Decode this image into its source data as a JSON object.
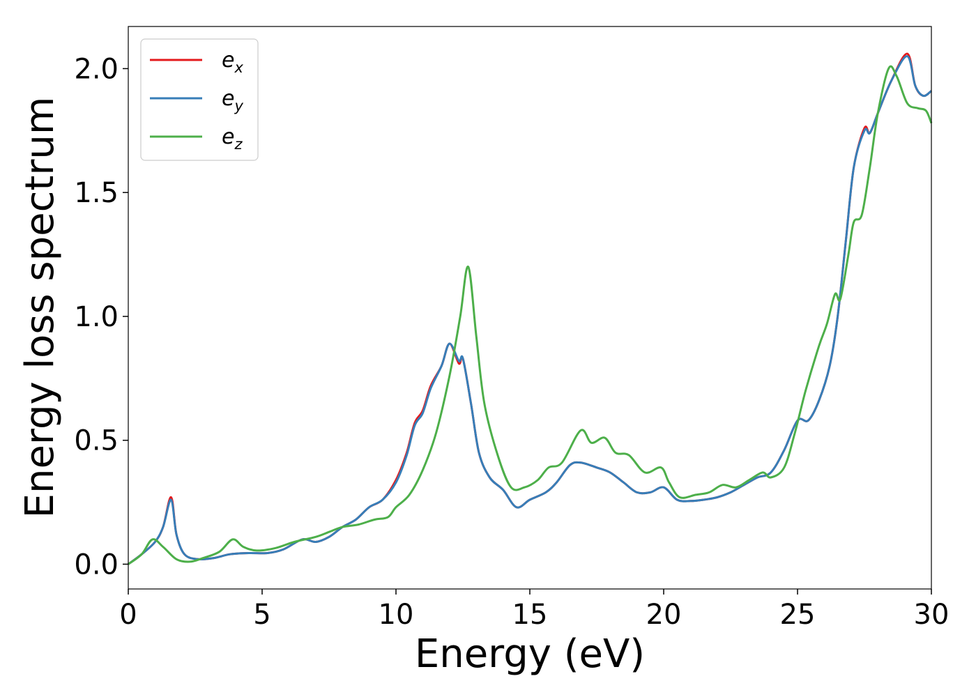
{
  "chart_data": {
    "type": "line",
    "title": "",
    "xlabel": "Energy (eV)",
    "ylabel": "Energy loss spectrum",
    "xlim": [
      0,
      30
    ],
    "ylim": [
      -0.1,
      2.17
    ],
    "x_ticks": [
      "0",
      "5",
      "10",
      "15",
      "20",
      "25",
      "30"
    ],
    "y_ticks": [
      "0.0",
      "0.5",
      "1.0",
      "1.5",
      "2.0"
    ],
    "x_tick_values": [
      0,
      5,
      10,
      15,
      20,
      25,
      30
    ],
    "y_tick_values": [
      0.0,
      0.5,
      1.0,
      1.5,
      2.0
    ],
    "grid": false,
    "legend_position": "top-left",
    "series": [
      {
        "name": "e",
        "subscript": "x",
        "color": "#e41a1c",
        "points": [
          [
            0,
            0
          ],
          [
            0.5,
            0.04
          ],
          [
            1.0,
            0.09
          ],
          [
            1.3,
            0.15
          ],
          [
            1.6,
            0.27
          ],
          [
            1.8,
            0.12
          ],
          [
            2.1,
            0.04
          ],
          [
            2.6,
            0.02
          ],
          [
            3.2,
            0.025
          ],
          [
            3.8,
            0.04
          ],
          [
            4.5,
            0.045
          ],
          [
            5.2,
            0.045
          ],
          [
            5.8,
            0.06
          ],
          [
            6.5,
            0.1
          ],
          [
            7.0,
            0.09
          ],
          [
            7.5,
            0.11
          ],
          [
            8.0,
            0.15
          ],
          [
            8.5,
            0.18
          ],
          [
            9.0,
            0.23
          ],
          [
            9.5,
            0.26
          ],
          [
            10.0,
            0.34
          ],
          [
            10.4,
            0.45
          ],
          [
            10.7,
            0.57
          ],
          [
            11.0,
            0.62
          ],
          [
            11.3,
            0.72
          ],
          [
            11.7,
            0.8
          ],
          [
            12.0,
            0.89
          ],
          [
            12.35,
            0.81
          ],
          [
            12.5,
            0.83
          ],
          [
            12.8,
            0.65
          ],
          [
            13.1,
            0.45
          ],
          [
            13.5,
            0.35
          ],
          [
            14.0,
            0.3
          ],
          [
            14.5,
            0.23
          ],
          [
            15.0,
            0.26
          ],
          [
            15.6,
            0.29
          ],
          [
            16.0,
            0.33
          ],
          [
            16.5,
            0.4
          ],
          [
            16.9,
            0.41
          ],
          [
            17.5,
            0.39
          ],
          [
            18.0,
            0.37
          ],
          [
            18.5,
            0.33
          ],
          [
            19.0,
            0.29
          ],
          [
            19.5,
            0.29
          ],
          [
            20.0,
            0.31
          ],
          [
            20.5,
            0.26
          ],
          [
            21.0,
            0.255
          ],
          [
            21.5,
            0.26
          ],
          [
            22.0,
            0.27
          ],
          [
            22.5,
            0.29
          ],
          [
            23.0,
            0.32
          ],
          [
            23.5,
            0.35
          ],
          [
            24.0,
            0.37
          ],
          [
            24.5,
            0.46
          ],
          [
            25.0,
            0.58
          ],
          [
            25.4,
            0.58
          ],
          [
            25.8,
            0.66
          ],
          [
            26.2,
            0.8
          ],
          [
            26.5,
            1.0
          ],
          [
            26.8,
            1.3
          ],
          [
            27.1,
            1.6
          ],
          [
            27.5,
            1.76
          ],
          [
            27.7,
            1.74
          ],
          [
            28.0,
            1.82
          ],
          [
            28.5,
            1.95
          ],
          [
            29.1,
            2.06
          ],
          [
            29.4,
            1.93
          ],
          [
            29.7,
            1.89
          ],
          [
            30.0,
            1.91
          ]
        ]
      },
      {
        "name": "e",
        "subscript": "y",
        "color": "#377eb8",
        "points": [
          [
            0,
            0
          ],
          [
            0.5,
            0.04
          ],
          [
            1.0,
            0.09
          ],
          [
            1.3,
            0.15
          ],
          [
            1.6,
            0.26
          ],
          [
            1.8,
            0.12
          ],
          [
            2.1,
            0.04
          ],
          [
            2.6,
            0.02
          ],
          [
            3.2,
            0.025
          ],
          [
            3.8,
            0.04
          ],
          [
            4.5,
            0.045
          ],
          [
            5.2,
            0.045
          ],
          [
            5.8,
            0.06
          ],
          [
            6.5,
            0.1
          ],
          [
            7.0,
            0.09
          ],
          [
            7.5,
            0.11
          ],
          [
            8.0,
            0.15
          ],
          [
            8.5,
            0.18
          ],
          [
            9.0,
            0.23
          ],
          [
            9.5,
            0.26
          ],
          [
            10.0,
            0.33
          ],
          [
            10.4,
            0.44
          ],
          [
            10.7,
            0.56
          ],
          [
            11.0,
            0.61
          ],
          [
            11.3,
            0.71
          ],
          [
            11.7,
            0.8
          ],
          [
            12.0,
            0.89
          ],
          [
            12.35,
            0.82
          ],
          [
            12.5,
            0.83
          ],
          [
            12.8,
            0.65
          ],
          [
            13.1,
            0.45
          ],
          [
            13.5,
            0.35
          ],
          [
            14.0,
            0.3
          ],
          [
            14.5,
            0.23
          ],
          [
            15.0,
            0.26
          ],
          [
            15.6,
            0.29
          ],
          [
            16.0,
            0.33
          ],
          [
            16.5,
            0.4
          ],
          [
            16.9,
            0.41
          ],
          [
            17.5,
            0.39
          ],
          [
            18.0,
            0.37
          ],
          [
            18.5,
            0.33
          ],
          [
            19.0,
            0.29
          ],
          [
            19.5,
            0.29
          ],
          [
            20.0,
            0.31
          ],
          [
            20.5,
            0.26
          ],
          [
            21.0,
            0.255
          ],
          [
            21.5,
            0.26
          ],
          [
            22.0,
            0.27
          ],
          [
            22.5,
            0.29
          ],
          [
            23.0,
            0.32
          ],
          [
            23.5,
            0.35
          ],
          [
            24.0,
            0.37
          ],
          [
            24.5,
            0.46
          ],
          [
            25.0,
            0.58
          ],
          [
            25.4,
            0.58
          ],
          [
            25.8,
            0.66
          ],
          [
            26.2,
            0.8
          ],
          [
            26.5,
            1.0
          ],
          [
            26.8,
            1.3
          ],
          [
            27.1,
            1.6
          ],
          [
            27.5,
            1.75
          ],
          [
            27.7,
            1.74
          ],
          [
            28.0,
            1.82
          ],
          [
            28.5,
            1.95
          ],
          [
            29.1,
            2.05
          ],
          [
            29.4,
            1.93
          ],
          [
            29.7,
            1.89
          ],
          [
            30.0,
            1.91
          ]
        ]
      },
      {
        "name": "e",
        "subscript": "z",
        "color": "#4daf4a",
        "points": [
          [
            0,
            0
          ],
          [
            0.5,
            0.04
          ],
          [
            0.9,
            0.1
          ],
          [
            1.3,
            0.07
          ],
          [
            1.8,
            0.02
          ],
          [
            2.3,
            0.01
          ],
          [
            2.8,
            0.025
          ],
          [
            3.4,
            0.05
          ],
          [
            3.9,
            0.1
          ],
          [
            4.3,
            0.07
          ],
          [
            4.8,
            0.055
          ],
          [
            5.5,
            0.065
          ],
          [
            6.2,
            0.09
          ],
          [
            7.0,
            0.11
          ],
          [
            7.5,
            0.13
          ],
          [
            8.0,
            0.15
          ],
          [
            8.6,
            0.16
          ],
          [
            9.2,
            0.18
          ],
          [
            9.7,
            0.19
          ],
          [
            10.0,
            0.23
          ],
          [
            10.5,
            0.28
          ],
          [
            11.0,
            0.38
          ],
          [
            11.5,
            0.53
          ],
          [
            12.0,
            0.76
          ],
          [
            12.4,
            1.0
          ],
          [
            12.7,
            1.2
          ],
          [
            13.0,
            0.92
          ],
          [
            13.3,
            0.65
          ],
          [
            13.8,
            0.44
          ],
          [
            14.3,
            0.31
          ],
          [
            14.8,
            0.31
          ],
          [
            15.3,
            0.34
          ],
          [
            15.7,
            0.39
          ],
          [
            16.2,
            0.41
          ],
          [
            16.9,
            0.54
          ],
          [
            17.3,
            0.49
          ],
          [
            17.8,
            0.51
          ],
          [
            18.2,
            0.45
          ],
          [
            18.7,
            0.44
          ],
          [
            19.3,
            0.37
          ],
          [
            19.9,
            0.39
          ],
          [
            20.2,
            0.33
          ],
          [
            20.6,
            0.27
          ],
          [
            21.2,
            0.28
          ],
          [
            21.7,
            0.29
          ],
          [
            22.2,
            0.32
          ],
          [
            22.7,
            0.31
          ],
          [
            23.2,
            0.34
          ],
          [
            23.7,
            0.37
          ],
          [
            24.0,
            0.35
          ],
          [
            24.5,
            0.39
          ],
          [
            24.9,
            0.53
          ],
          [
            25.3,
            0.7
          ],
          [
            25.8,
            0.88
          ],
          [
            26.1,
            0.97
          ],
          [
            26.4,
            1.09
          ],
          [
            26.6,
            1.07
          ],
          [
            26.9,
            1.25
          ],
          [
            27.1,
            1.38
          ],
          [
            27.4,
            1.41
          ],
          [
            27.7,
            1.6
          ],
          [
            28.0,
            1.82
          ],
          [
            28.4,
            2.0
          ],
          [
            28.7,
            1.97
          ],
          [
            29.1,
            1.86
          ],
          [
            29.5,
            1.84
          ],
          [
            29.8,
            1.83
          ],
          [
            30.0,
            1.78
          ]
        ]
      }
    ]
  }
}
